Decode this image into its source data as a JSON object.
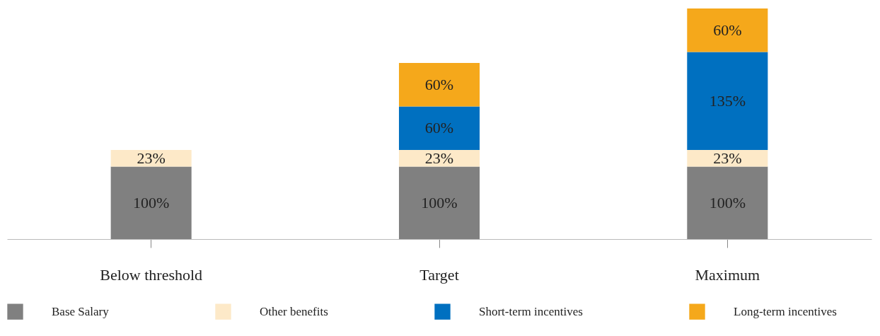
{
  "chart_data": {
    "type": "bar",
    "stacked": true,
    "legend": "bottom",
    "categories": [
      "Below threshold",
      "Target",
      "Maximum"
    ],
    "series": [
      {
        "name": "Base Salary",
        "color": "#808080",
        "values": [
          100,
          100,
          100
        ],
        "value_labels": [
          "100%",
          "100%",
          "100%"
        ]
      },
      {
        "name": "Other benefits",
        "color": "#fde9c8",
        "values": [
          23,
          23,
          23
        ],
        "value_labels": [
          "23%",
          "23%",
          "23%"
        ]
      },
      {
        "name": "Short-term incentives",
        "color": "#0070c0",
        "values": [
          null,
          60,
          135
        ],
        "value_labels": [
          null,
          "60%",
          "135%"
        ]
      },
      {
        "name": "Long-term incentives",
        "color": "#f5a81b",
        "values": [
          null,
          60,
          60
        ],
        "value_labels": [
          null,
          "60%",
          "60%"
        ]
      }
    ]
  }
}
